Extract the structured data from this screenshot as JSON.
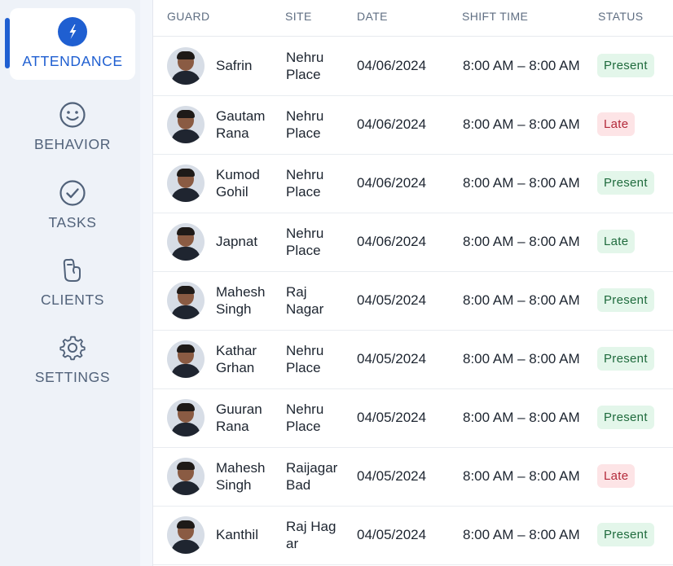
{
  "colors": {
    "accent": "#1f5fd1",
    "present_bg": "#e3f6ea",
    "present_fg": "#1f6b3d",
    "late_bg": "#fde4e6",
    "late_fg": "#b3293a"
  },
  "sidebar": {
    "items": [
      {
        "label": "ATTENDANCE",
        "icon": "attendance-icon",
        "active": true
      },
      {
        "label": "BEHAVIOR",
        "icon": "smiley-icon",
        "active": false
      },
      {
        "label": "TASKS",
        "icon": "check-circle-icon",
        "active": false
      },
      {
        "label": "CLIENTS",
        "icon": "clients-icon",
        "active": false
      },
      {
        "label": "SETTINGS",
        "icon": "gear-icon",
        "active": false
      }
    ]
  },
  "table": {
    "headers": {
      "guard": "GUARD",
      "site": "SITE",
      "date": "DATE",
      "shift": "SHIFT TIME",
      "status": "STATUS"
    },
    "rows": [
      {
        "name": [
          "Safrin",
          ""
        ],
        "site": [
          "Nehru",
          "Place"
        ],
        "date": "04/06/2024",
        "shift": "8:00 AM – 8:00 AM",
        "status": "Present",
        "status_style": "present"
      },
      {
        "name": [
          "Gautam",
          "Rana"
        ],
        "site": [
          "Nehru",
          "Place"
        ],
        "date": "04/06/2024",
        "shift": "8:00 AM – 8:00 AM",
        "status": "Late",
        "status_style": "late-red"
      },
      {
        "name": [
          "Kumod",
          "Gohil"
        ],
        "site": [
          "Nehru",
          "Place"
        ],
        "date": "04/06/2024",
        "shift": "8:00 AM – 8:00 AM",
        "status": "Present",
        "status_style": "present"
      },
      {
        "name": [
          "Japnat",
          ""
        ],
        "site": [
          "Nehru",
          "Place"
        ],
        "date": "04/06/2024",
        "shift": "8:00 AM – 8:00 AM",
        "status": "Late",
        "status_style": "late-green"
      },
      {
        "name": [
          "Mahesh",
          "Singh"
        ],
        "site": [
          "Raj",
          "Nagar"
        ],
        "date": "04/05/2024",
        "shift": "8:00 AM – 8:00 AM",
        "status": "Present",
        "status_style": "present"
      },
      {
        "name": [
          "Kathar",
          "Grhan"
        ],
        "site": [
          "Nehru",
          "Place"
        ],
        "date": "04/05/2024",
        "shift": "8:00 AM – 8:00 AM",
        "status": "Present",
        "status_style": "present"
      },
      {
        "name": [
          "Guuran",
          "Rana"
        ],
        "site": [
          "Nehru",
          "Place"
        ],
        "date": "04/05/2024",
        "shift": "8:00 AM – 8:00 AM",
        "status": "Present",
        "status_style": "present"
      },
      {
        "name": [
          "Mahesh",
          "Singh"
        ],
        "site": [
          "Raijagar",
          "Bad"
        ],
        "date": "04/05/2024",
        "shift": "8:00 AM – 8:00 AM",
        "status": "Late",
        "status_style": "late-red"
      },
      {
        "name": [
          "Kanthil",
          ""
        ],
        "site": [
          "Raj Hag",
          "ar"
        ],
        "date": "04/05/2024",
        "shift": "8:00 AM – 8:00 AM",
        "status": "Present",
        "status_style": "present"
      }
    ]
  }
}
